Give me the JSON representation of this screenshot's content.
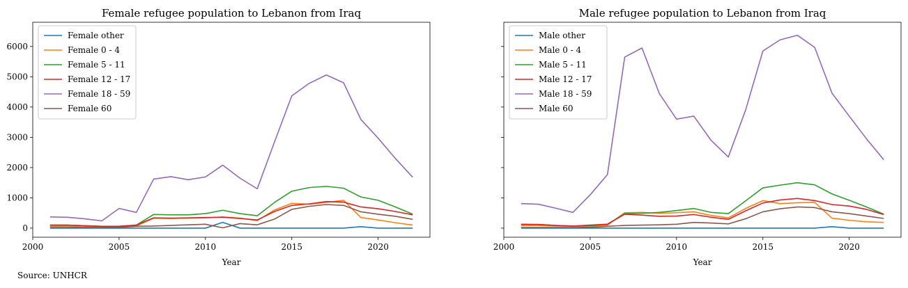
{
  "source": "Source: UNHCR",
  "chart_data": [
    {
      "type": "line",
      "title": "Female refugee population to Lebanon from Iraq",
      "xlabel": "Year",
      "ylabel": "",
      "xlim": [
        2000,
        2023
      ],
      "ylim": [
        -300,
        6800
      ],
      "xticks": [
        2000,
        2005,
        2010,
        2015,
        2020
      ],
      "yticks": [
        0,
        1000,
        2000,
        3000,
        4000,
        5000,
        6000
      ],
      "legend": "top-left",
      "x": [
        2001,
        2002,
        2003,
        2004,
        2005,
        2006,
        2007,
        2008,
        2009,
        2010,
        2011,
        2012,
        2013,
        2014,
        2015,
        2016,
        2017,
        2018,
        2019,
        2020,
        2021,
        2022
      ],
      "series": [
        {
          "name": "Female other",
          "color": "#1f77b4",
          "values": [
            0,
            0,
            0,
            0,
            0,
            0,
            0,
            0,
            0,
            0,
            190,
            0,
            0,
            0,
            0,
            0,
            0,
            0,
            50,
            0,
            0,
            0
          ]
        },
        {
          "name": "Female 0 - 4",
          "color": "#ff7f0e",
          "values": [
            60,
            60,
            40,
            30,
            30,
            70,
            330,
            320,
            330,
            340,
            370,
            330,
            250,
            600,
            820,
            790,
            850,
            920,
            350,
            270,
            180,
            100
          ]
        },
        {
          "name": "Female 5 - 11",
          "color": "#2ca02c",
          "values": [
            100,
            100,
            80,
            60,
            60,
            100,
            450,
            440,
            440,
            480,
            590,
            480,
            410,
            850,
            1220,
            1340,
            1380,
            1320,
            1030,
            920,
            700,
            460
          ]
        },
        {
          "name": "Female 12 - 17",
          "color": "#d62728",
          "values": [
            100,
            100,
            80,
            60,
            60,
            100,
            340,
            330,
            340,
            350,
            360,
            320,
            270,
            550,
            750,
            800,
            880,
            860,
            700,
            640,
            550,
            440
          ]
        },
        {
          "name": "Female 18 - 59",
          "color": "#9467bd",
          "values": [
            370,
            360,
            310,
            240,
            650,
            520,
            1620,
            1700,
            1600,
            1690,
            2080,
            1650,
            1300,
            2850,
            4370,
            4780,
            5060,
            4800,
            3590,
            2970,
            2300,
            1680
          ]
        },
        {
          "name": "Female 60",
          "color": "#8c564b",
          "values": [
            20,
            20,
            20,
            20,
            30,
            60,
            70,
            90,
            110,
            130,
            10,
            150,
            110,
            300,
            620,
            720,
            780,
            750,
            540,
            460,
            390,
            290
          ]
        }
      ]
    },
    {
      "type": "line",
      "title": "Male refugee population to Lebanon from Iraq",
      "xlabel": "Year",
      "ylabel": "",
      "xlim": [
        2000,
        2023
      ],
      "ylim": [
        -300,
        6800
      ],
      "xticks": [
        2000,
        2005,
        2010,
        2015,
        2020
      ],
      "yticks": [
        0,
        1000,
        2000,
        3000,
        4000,
        5000,
        6000
      ],
      "legend": "top-left",
      "x": [
        2001,
        2002,
        2003,
        2004,
        2005,
        2006,
        2007,
        2008,
        2009,
        2010,
        2011,
        2012,
        2013,
        2014,
        2015,
        2016,
        2017,
        2018,
        2019,
        2020,
        2021,
        2022
      ],
      "series": [
        {
          "name": "Male other",
          "color": "#1f77b4",
          "values": [
            0,
            0,
            0,
            0,
            0,
            0,
            0,
            0,
            0,
            0,
            0,
            0,
            0,
            0,
            0,
            0,
            0,
            0,
            50,
            0,
            0,
            0
          ]
        },
        {
          "name": "Male 0 - 4",
          "color": "#ff7f0e",
          "values": [
            90,
            90,
            70,
            60,
            70,
            100,
            510,
            520,
            490,
            510,
            540,
            420,
            340,
            650,
            910,
            810,
            840,
            850,
            330,
            260,
            210,
            190
          ]
        },
        {
          "name": "Male 5 - 11",
          "color": "#2ca02c",
          "values": [
            120,
            120,
            90,
            70,
            80,
            130,
            480,
            490,
            520,
            580,
            650,
            520,
            480,
            900,
            1330,
            1420,
            1500,
            1430,
            1130,
            920,
            700,
            460
          ]
        },
        {
          "name": "Male 12 - 17",
          "color": "#d62728",
          "values": [
            130,
            120,
            90,
            70,
            100,
            130,
            460,
            430,
            390,
            400,
            450,
            360,
            290,
            570,
            830,
            930,
            980,
            910,
            780,
            730,
            620,
            450
          ]
        },
        {
          "name": "Male 18 - 59",
          "color": "#9467bd",
          "values": [
            810,
            790,
            660,
            520,
            1100,
            1770,
            5650,
            5950,
            4450,
            3600,
            3700,
            2900,
            2350,
            3900,
            5850,
            6220,
            6370,
            5970,
            4460,
            3700,
            2950,
            2260
          ]
        },
        {
          "name": "Male 60",
          "color": "#8c564b",
          "values": [
            20,
            20,
            20,
            20,
            30,
            60,
            90,
            100,
            110,
            130,
            190,
            170,
            140,
            310,
            540,
            640,
            700,
            680,
            540,
            480,
            400,
            320
          ]
        }
      ]
    }
  ]
}
